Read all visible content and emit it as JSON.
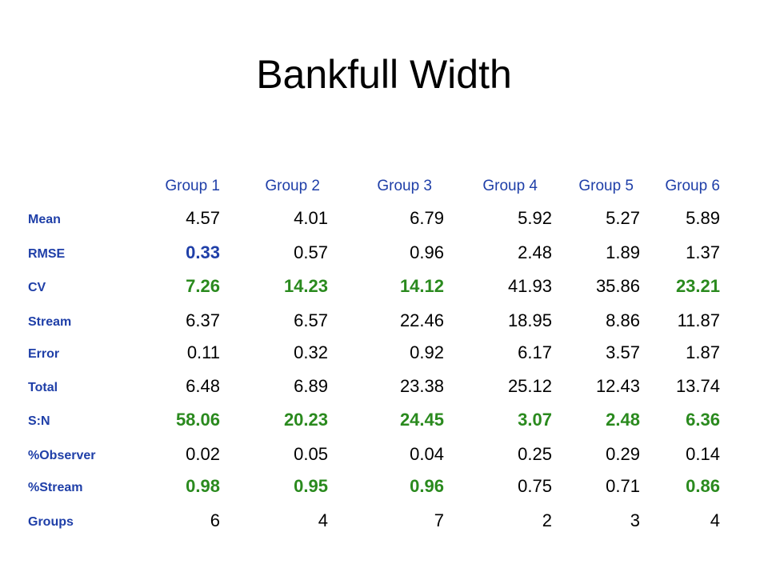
{
  "title": "Bankfull Width",
  "columns": [
    "Group 1",
    "Group 2",
    "Group 3",
    "Group 4",
    "Group 5",
    "Group 6"
  ],
  "rows": [
    {
      "label": "Mean",
      "cells": [
        {
          "v": "4.57"
        },
        {
          "v": "4.01"
        },
        {
          "v": "6.79"
        },
        {
          "v": "5.92"
        },
        {
          "v": "5.27"
        },
        {
          "v": "5.89"
        }
      ]
    },
    {
      "label": "RMSE",
      "cells": [
        {
          "v": "0.33",
          "hl": "blue"
        },
        {
          "v": "0.57"
        },
        {
          "v": "0.96"
        },
        {
          "v": "2.48"
        },
        {
          "v": "1.89"
        },
        {
          "v": "1.37"
        }
      ]
    },
    {
      "label": "CV",
      "cells": [
        {
          "v": "7.26",
          "hl": "green"
        },
        {
          "v": "14.23",
          "hl": "green"
        },
        {
          "v": "14.12",
          "hl": "green"
        },
        {
          "v": "41.93"
        },
        {
          "v": "35.86"
        },
        {
          "v": "23.21",
          "hl": "green"
        }
      ]
    },
    {
      "label": "Stream",
      "cells": [
        {
          "v": "6.37"
        },
        {
          "v": "6.57"
        },
        {
          "v": "22.46"
        },
        {
          "v": "18.95"
        },
        {
          "v": "8.86"
        },
        {
          "v": "11.87"
        }
      ]
    },
    {
      "label": "Error",
      "cells": [
        {
          "v": "0.11"
        },
        {
          "v": "0.32"
        },
        {
          "v": "0.92"
        },
        {
          "v": "6.17"
        },
        {
          "v": "3.57"
        },
        {
          "v": "1.87"
        }
      ]
    },
    {
      "label": "Total",
      "cells": [
        {
          "v": "6.48"
        },
        {
          "v": "6.89"
        },
        {
          "v": "23.38"
        },
        {
          "v": "25.12"
        },
        {
          "v": "12.43"
        },
        {
          "v": "13.74"
        }
      ]
    },
    {
      "label": "S:N",
      "cells": [
        {
          "v": "58.06",
          "hl": "green"
        },
        {
          "v": "20.23",
          "hl": "green"
        },
        {
          "v": "24.45",
          "hl": "green"
        },
        {
          "v": "3.07",
          "hl": "green"
        },
        {
          "v": "2.48",
          "hl": "green"
        },
        {
          "v": "6.36",
          "hl": "green"
        }
      ]
    },
    {
      "label": "%Observer",
      "cells": [
        {
          "v": "0.02"
        },
        {
          "v": "0.05"
        },
        {
          "v": "0.04"
        },
        {
          "v": "0.25"
        },
        {
          "v": "0.29"
        },
        {
          "v": "0.14"
        }
      ]
    },
    {
      "label": "%Stream",
      "cells": [
        {
          "v": "0.98",
          "hl": "green"
        },
        {
          "v": "0.95",
          "hl": "green"
        },
        {
          "v": "0.96",
          "hl": "green"
        },
        {
          "v": "0.75"
        },
        {
          "v": "0.71"
        },
        {
          "v": "0.86",
          "hl": "green"
        }
      ]
    },
    {
      "label": "Groups",
      "cells": [
        {
          "v": "6"
        },
        {
          "v": "4"
        },
        {
          "v": "7"
        },
        {
          "v": "2"
        },
        {
          "v": "3"
        },
        {
          "v": "4"
        }
      ]
    }
  ],
  "colors": {
    "label_blue": "#1f3fa8",
    "highlight_green": "#2a8a1e",
    "highlight_blue": "#1f3fa8"
  }
}
